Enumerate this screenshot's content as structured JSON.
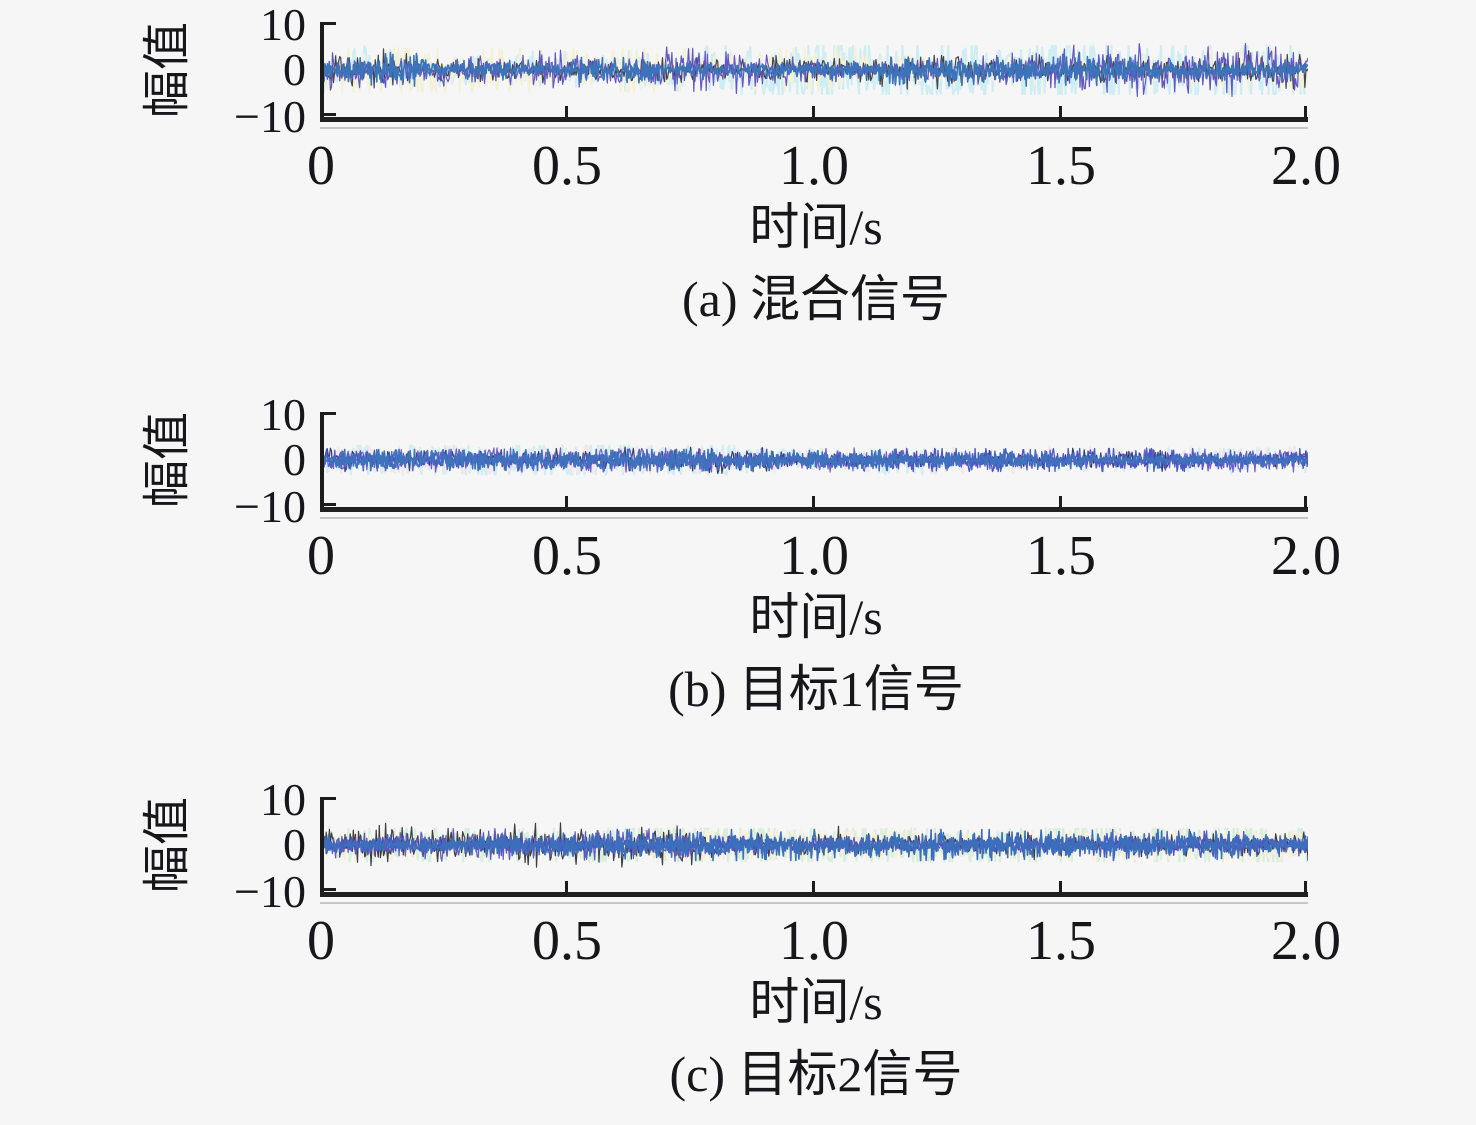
{
  "page": {
    "background": "#f6f6f6",
    "text_color": "#17171b",
    "description": "Three stacked time-domain waveform panels of dense zero-mean random noise signals"
  },
  "chart_data": [
    {
      "id": "a",
      "type": "line",
      "caption": "(a) 混合信号",
      "xlabel": "时间/s",
      "ylabel": "幅值",
      "xlim": [
        0,
        2
      ],
      "ylim": [
        -10,
        10
      ],
      "xticks": [
        0,
        0.5,
        1.0,
        1.5,
        2.0
      ],
      "xtick_labels": [
        "0",
        "0.5",
        "1.0",
        "1.5",
        "2.0"
      ],
      "yticks": [
        10,
        0,
        -10
      ],
      "ytick_labels": [
        "10",
        "0",
        "−10"
      ],
      "grid": false,
      "legend": null,
      "signal_summary": "zero-mean broadband noise, typical excursion ±3 to ±5, occasional spikes to ≈ −7; several overlapping channels",
      "series": [
        {
          "name": "tint-cyan",
          "color": "#cfeef3",
          "sigma": 2.6,
          "spike": 5.0,
          "seed": 101,
          "width": 2.2,
          "points": 800
        },
        {
          "name": "tint-warm",
          "color": "#f4f1d9",
          "sigma": 2.2,
          "spike": 4.5,
          "seed": 102,
          "width": 2.2,
          "points": 800
        },
        {
          "name": "trace-dark",
          "color": "#43444c",
          "sigma": 1.7,
          "spike": 7.0,
          "seed": 103,
          "width": 1.2,
          "points": 950
        },
        {
          "name": "trace-purple",
          "color": "#6257c4",
          "sigma": 1.55,
          "spike": 5.5,
          "seed": 104,
          "width": 1.2,
          "points": 950
        },
        {
          "name": "trace-blue",
          "color": "#3b74b9",
          "sigma": 1.25,
          "spike": 4.2,
          "seed": 105,
          "width": 1.6,
          "points": 1600
        }
      ]
    },
    {
      "id": "b",
      "type": "line",
      "caption": "(b) 目标1信号",
      "xlabel": "时间/s",
      "ylabel": "幅值",
      "xlim": [
        0,
        2
      ],
      "ylim": [
        -10,
        10
      ],
      "xticks": [
        0,
        0.5,
        1.0,
        1.5,
        2.0
      ],
      "xtick_labels": [
        "0",
        "0.5",
        "1.0",
        "1.5",
        "2.0"
      ],
      "yticks": [
        10,
        0,
        -10
      ],
      "ytick_labels": [
        "10",
        "0",
        "−10"
      ],
      "grid": false,
      "legend": null,
      "signal_summary": "zero-mean broadband noise, tighter band, typical excursion ±2 to ±3; overlapping blue/indigo band with purple fringe and pale tints",
      "series": [
        {
          "name": "tint-cyan",
          "color": "#d2eef4",
          "sigma": 1.7,
          "spike": 3.0,
          "seed": 201,
          "width": 2.2,
          "points": 800
        },
        {
          "name": "tint-pink",
          "color": "#f7e6ee",
          "sigma": 1.5,
          "spike": 2.8,
          "seed": 202,
          "width": 2.2,
          "points": 800
        },
        {
          "name": "trace-navy",
          "color": "#2e3f72",
          "sigma": 0.95,
          "spike": 2.8,
          "seed": 203,
          "width": 1.2,
          "points": 950
        },
        {
          "name": "trace-purple",
          "color": "#6b5fc8",
          "sigma": 0.9,
          "spike": 2.5,
          "seed": 204,
          "width": 1.2,
          "points": 950
        },
        {
          "name": "trace-indigo",
          "color": "#4a58c2",
          "sigma": 0.85,
          "spike": 2.4,
          "seed": 205,
          "width": 1.3,
          "points": 1200
        },
        {
          "name": "trace-blue",
          "color": "#3f72bd",
          "sigma": 0.8,
          "spike": 2.2,
          "seed": 206,
          "width": 1.6,
          "points": 1600
        }
      ]
    },
    {
      "id": "c",
      "type": "line",
      "caption": "(c) 目标2信号",
      "xlabel": "时间/s",
      "ylabel": "幅值",
      "xlim": [
        0,
        2
      ],
      "ylim": [
        -10,
        10
      ],
      "xticks": [
        0,
        0.5,
        1.0,
        1.5,
        2.0
      ],
      "xtick_labels": [
        "0",
        "0.5",
        "1.0",
        "1.5",
        "2.0"
      ],
      "yticks": [
        10,
        0,
        -10
      ],
      "ytick_labels": [
        "10",
        "0",
        "−10"
      ],
      "grid": false,
      "legend": null,
      "signal_summary": "zero-mean broadband noise, typical excursion ±2.5 to ±4 with sparse larger spikes; blue/indigo band, purple and dark fringes, pale green/cream tints",
      "series": [
        {
          "name": "tint-green",
          "color": "#d9efdc",
          "sigma": 1.9,
          "spike": 3.4,
          "seed": 301,
          "width": 2.2,
          "points": 800
        },
        {
          "name": "tint-cream",
          "color": "#f6f0dc",
          "sigma": 1.6,
          "spike": 3.0,
          "seed": 302,
          "width": 2.2,
          "points": 800
        },
        {
          "name": "trace-dark",
          "color": "#3d3e46",
          "sigma": 1.3,
          "spike": 4.6,
          "seed": 303,
          "width": 1.2,
          "points": 950
        },
        {
          "name": "trace-purple",
          "color": "#6459c0",
          "sigma": 1.1,
          "spike": 3.4,
          "seed": 304,
          "width": 1.2,
          "points": 950
        },
        {
          "name": "trace-indigo",
          "color": "#4a57c5",
          "sigma": 1.0,
          "spike": 3.3,
          "seed": 305,
          "width": 1.3,
          "points": 1200
        },
        {
          "name": "trace-blue",
          "color": "#3c6fbb",
          "sigma": 0.95,
          "spike": 3.2,
          "seed": 306,
          "width": 1.6,
          "points": 1600
        }
      ]
    }
  ]
}
